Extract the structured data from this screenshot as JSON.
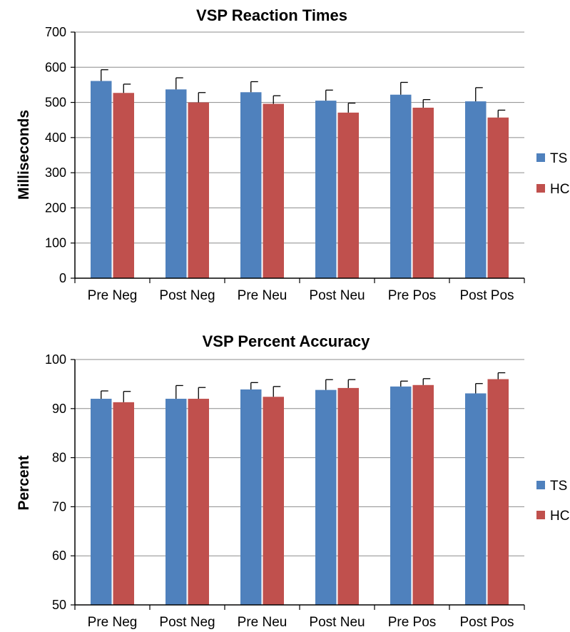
{
  "chart_data": [
    {
      "type": "bar",
      "title": "VSP Reaction Times",
      "xlabel": "",
      "ylabel": "Milliseconds",
      "ylim": [
        0,
        700
      ],
      "yticks": [
        0,
        100,
        200,
        300,
        400,
        500,
        600,
        700
      ],
      "grid": true,
      "legend_position": "right",
      "categories": [
        "Pre Neg",
        "Post Neg",
        "Pre Neu",
        "Post Neu",
        "Pre Pos",
        "Post Pos"
      ],
      "series": [
        {
          "name": "TS",
          "color": "#4f81bd",
          "values": [
            561,
            537,
            529,
            505,
            522,
            503
          ],
          "error": [
            32,
            33,
            30,
            30,
            35,
            39
          ]
        },
        {
          "name": "HC",
          "color": "#c0504d",
          "values": [
            527,
            500,
            496,
            471,
            485,
            457
          ],
          "error": [
            25,
            28,
            23,
            27,
            23,
            21
          ]
        }
      ]
    },
    {
      "type": "bar",
      "title": "VSP Percent Accuracy",
      "xlabel": "",
      "ylabel": "Percent",
      "ylim": [
        50,
        100
      ],
      "yticks": [
        50,
        60,
        70,
        80,
        90,
        100
      ],
      "grid": true,
      "legend_position": "right",
      "categories": [
        "Pre Neg",
        "Post Neg",
        "Pre Neu",
        "Post Neu",
        "Pre Pos",
        "Post Pos"
      ],
      "series": [
        {
          "name": "TS",
          "color": "#4f81bd",
          "values": [
            92.0,
            92.0,
            93.9,
            93.8,
            94.5,
            93.1
          ],
          "error": [
            1.6,
            2.7,
            1.4,
            2.1,
            1.1,
            2.0
          ]
        },
        {
          "name": "HC",
          "color": "#c0504d",
          "values": [
            91.3,
            92.0,
            92.4,
            94.2,
            94.8,
            96.0
          ],
          "error": [
            2.2,
            2.3,
            2.1,
            1.7,
            1.3,
            1.3
          ]
        }
      ]
    }
  ]
}
